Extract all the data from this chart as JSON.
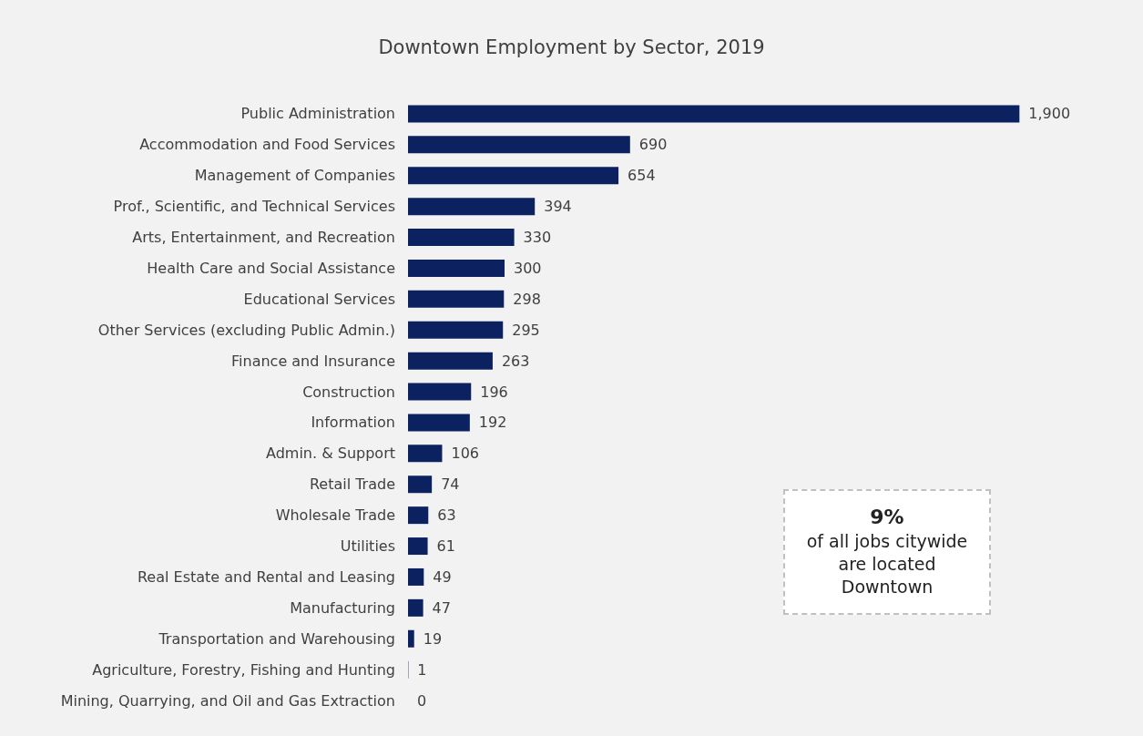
{
  "chart_data": {
    "type": "bar",
    "orientation": "horizontal",
    "title": "Downtown Employment by Sector, 2019",
    "categories": [
      "Public Administration",
      "Accommodation and Food Services",
      "Management of Companies",
      "Prof., Scientific, and Technical Services",
      "Arts, Entertainment, and Recreation",
      "Health Care and Social Assistance",
      "Educational Services",
      "Other Services (excluding Public Admin.)",
      "Finance and Insurance",
      "Construction",
      "Information",
      "Admin. & Support",
      "Retail Trade",
      "Wholesale Trade",
      "Utilities",
      "Real Estate and Rental and Leasing",
      "Manufacturing",
      "Transportation and Warehousing",
      "Agriculture, Forestry, Fishing and Hunting",
      "Mining, Quarrying, and Oil and Gas Extraction"
    ],
    "values": [
      1900,
      690,
      654,
      394,
      330,
      300,
      298,
      295,
      263,
      196,
      192,
      106,
      74,
      63,
      61,
      49,
      47,
      19,
      1,
      0
    ],
    "value_labels": [
      "1,900",
      "690",
      "654",
      "394",
      "330",
      "300",
      "298",
      "295",
      "263",
      "196",
      "192",
      "106",
      "74",
      "63",
      "61",
      "49",
      "47",
      "19",
      "1",
      "0"
    ],
    "color": "#0b2160",
    "annotations": [
      "9%",
      "of all jobs citywide are located Downtown"
    ]
  }
}
